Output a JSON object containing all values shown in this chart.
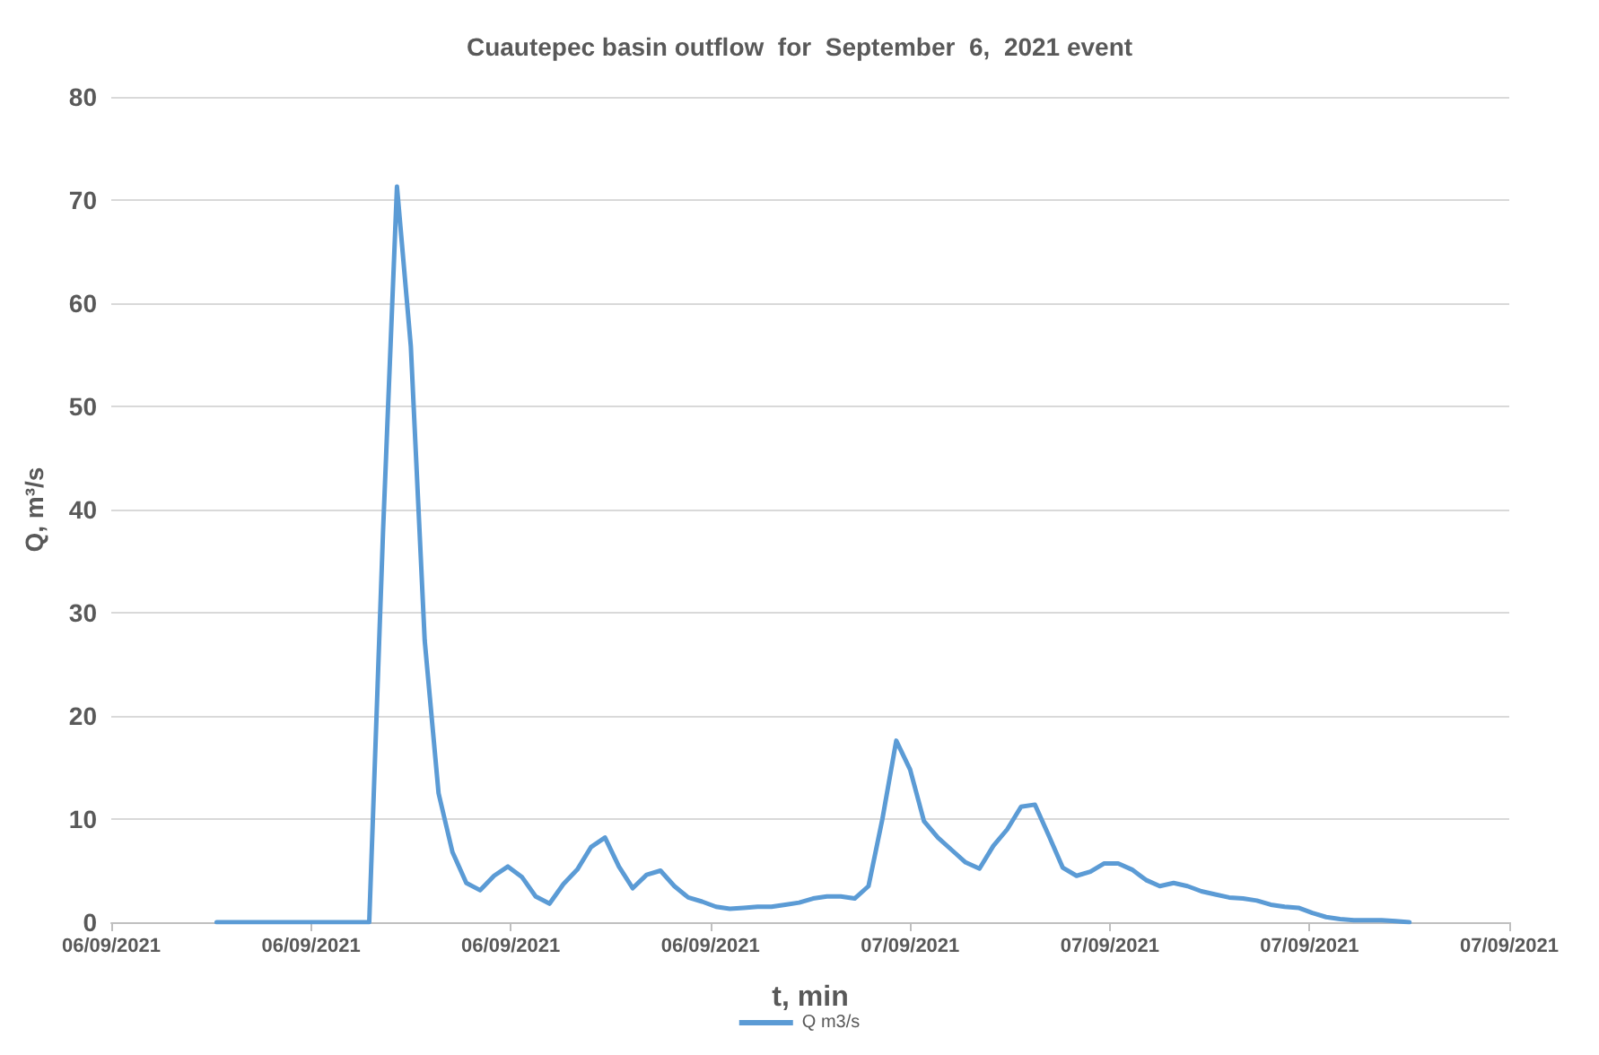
{
  "chart_data": {
    "type": "line",
    "title": "Cuautepec basin outflow  for  September  6,  2021 event",
    "xlabel": "t, min",
    "ylabel": "Q, m³/s",
    "x": [
      "2021-09-06T03:10",
      "2021-09-06T07:45",
      "2021-09-06T08:10",
      "2021-09-06T08:35",
      "2021-09-06T09:00",
      "2021-09-06T09:25",
      "2021-09-06T09:50",
      "2021-09-06T10:15",
      "2021-09-06T10:40",
      "2021-09-06T11:05",
      "2021-09-06T11:30",
      "2021-09-06T11:55",
      "2021-09-06T12:20",
      "2021-09-06T12:45",
      "2021-09-06T13:10",
      "2021-09-06T13:35",
      "2021-09-06T14:00",
      "2021-09-06T14:25",
      "2021-09-06T14:50",
      "2021-09-06T15:15",
      "2021-09-06T15:40",
      "2021-09-06T16:05",
      "2021-09-06T16:30",
      "2021-09-06T16:55",
      "2021-09-06T17:20",
      "2021-09-06T17:45",
      "2021-09-06T18:10",
      "2021-09-06T18:35",
      "2021-09-06T19:00",
      "2021-09-06T19:25",
      "2021-09-06T19:50",
      "2021-09-06T20:15",
      "2021-09-06T20:40",
      "2021-09-06T21:05",
      "2021-09-06T21:30",
      "2021-09-06T21:55",
      "2021-09-06T22:20",
      "2021-09-06T22:45",
      "2021-09-06T23:10",
      "2021-09-06T23:35",
      "2021-09-07T00:00",
      "2021-09-07T00:25",
      "2021-09-07T00:50",
      "2021-09-07T01:15",
      "2021-09-07T01:40",
      "2021-09-07T02:05",
      "2021-09-07T02:30",
      "2021-09-07T02:55",
      "2021-09-07T03:20",
      "2021-09-07T03:45",
      "2021-09-07T04:10",
      "2021-09-07T04:35",
      "2021-09-07T05:00",
      "2021-09-07T05:25",
      "2021-09-07T05:50",
      "2021-09-07T06:15",
      "2021-09-07T06:40",
      "2021-09-07T07:05",
      "2021-09-07T07:30",
      "2021-09-07T07:55",
      "2021-09-07T08:20",
      "2021-09-07T08:45",
      "2021-09-07T09:10",
      "2021-09-07T09:35",
      "2021-09-07T10:00",
      "2021-09-07T10:25",
      "2021-09-07T10:50",
      "2021-09-07T11:15",
      "2021-09-07T11:40",
      "2021-09-07T12:05",
      "2021-09-07T12:30",
      "2021-09-07T12:55",
      "2021-09-07T13:20",
      "2021-09-07T13:45",
      "2021-09-07T14:10",
      "2021-09-07T14:35",
      "2021-09-07T15:00"
    ],
    "series": [
      {
        "name": "Q m3/s",
        "color": "#5b9bd5",
        "values": [
          0,
          0,
          38,
          71.3,
          55.8,
          27.3,
          12.5,
          6.8,
          3.8,
          3.1,
          4.5,
          5.4,
          4.4,
          2.5,
          1.8,
          3.7,
          5.1,
          7.3,
          8.2,
          5.4,
          3.3,
          4.6,
          5,
          3.5,
          2.4,
          2,
          1.5,
          1.3,
          1.4,
          1.5,
          1.5,
          1.7,
          1.9,
          2.3,
          2.5,
          2.5,
          2.3,
          3.5,
          10,
          17.6,
          14.8,
          9.8,
          8.2,
          7,
          5.8,
          5.2,
          7.4,
          9,
          11.2,
          11.4,
          8.4,
          5.3,
          4.5,
          4.9,
          5.7,
          5.7,
          5.1,
          4.1,
          3.5,
          3.8,
          3.5,
          3,
          2.7,
          2.4,
          2.3,
          2.1,
          1.7,
          1.5,
          1.4,
          0.9,
          0.5,
          0.3,
          0.2,
          0.2,
          0.2,
          0.1,
          0
        ]
      }
    ],
    "xlim": [
      "2021-09-06T00:00",
      "2021-09-07T18:00"
    ],
    "xticks": [
      {
        "value": "2021-09-06T00:00",
        "label": "06/09/2021"
      },
      {
        "value": "2021-09-06T06:00",
        "label": "06/09/2021"
      },
      {
        "value": "2021-09-06T12:00",
        "label": "06/09/2021"
      },
      {
        "value": "2021-09-06T18:00",
        "label": "06/09/2021"
      },
      {
        "value": "2021-09-07T00:00",
        "label": "07/09/2021"
      },
      {
        "value": "2021-09-07T06:00",
        "label": "07/09/2021"
      },
      {
        "value": "2021-09-07T12:00",
        "label": "07/09/2021"
      },
      {
        "value": "2021-09-07T18:00",
        "label": "07/09/2021"
      }
    ],
    "ylim": [
      0,
      80
    ],
    "yticks": [
      0,
      10,
      20,
      30,
      40,
      50,
      60,
      70,
      80
    ],
    "grid": "y",
    "legend": "bottom",
    "marker": "none",
    "line_style": "solid"
  }
}
